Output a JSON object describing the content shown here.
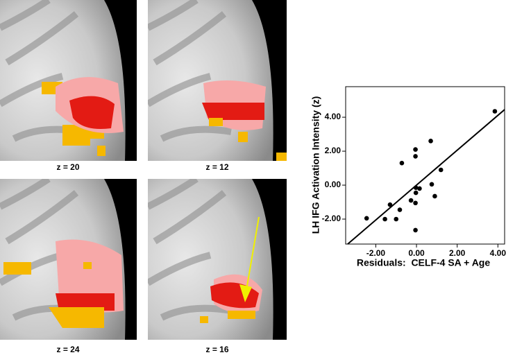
{
  "panels": [
    {
      "caption": "z = 20"
    },
    {
      "caption": "z = 12"
    },
    {
      "caption": "z = 24"
    },
    {
      "caption": "z = 16"
    }
  ],
  "chart_data": {
    "type": "scatter",
    "xlabel": "Residuals:  CELF-4 SA + Age",
    "ylabel": "LH IFG Activation Intensity (z)",
    "x": [
      3.85,
      -2.45,
      -1.55,
      -1.3,
      -1.0,
      -0.82,
      -0.72,
      -0.27,
      -0.05,
      -0.05,
      -0.05,
      -0.03,
      -0.03,
      -0.05,
      0.15,
      0.7,
      1.2,
      0.75,
      0.9
    ],
    "y": [
      4.35,
      -1.95,
      -2.0,
      -1.15,
      -2.0,
      -1.45,
      1.3,
      -0.9,
      -1.05,
      2.1,
      1.7,
      -0.15,
      -0.45,
      -2.65,
      -0.2,
      2.6,
      0.9,
      0.05,
      -0.65
    ],
    "color": "#000000",
    "fit_line": {
      "x": [
        -3.38,
        4.33
      ],
      "y": [
        -3.47,
        4.45
      ],
      "color": "#000000"
    },
    "xlim": [
      -3.48,
      4.33
    ],
    "ylim": [
      -3.47,
      5.8
    ],
    "xticks": [
      {
        "value": -2,
        "label": "-2.00"
      },
      {
        "value": 0,
        "label": "0.00"
      },
      {
        "value": 2,
        "label": "2.00"
      },
      {
        "value": 4,
        "label": "4.00"
      }
    ],
    "yticks": [
      {
        "value": -2,
        "label": "-2.00"
      },
      {
        "value": 0,
        "label": "0.00"
      },
      {
        "value": 2,
        "label": "2.00"
      },
      {
        "value": 4,
        "label": "4.00"
      }
    ],
    "grid": false
  }
}
